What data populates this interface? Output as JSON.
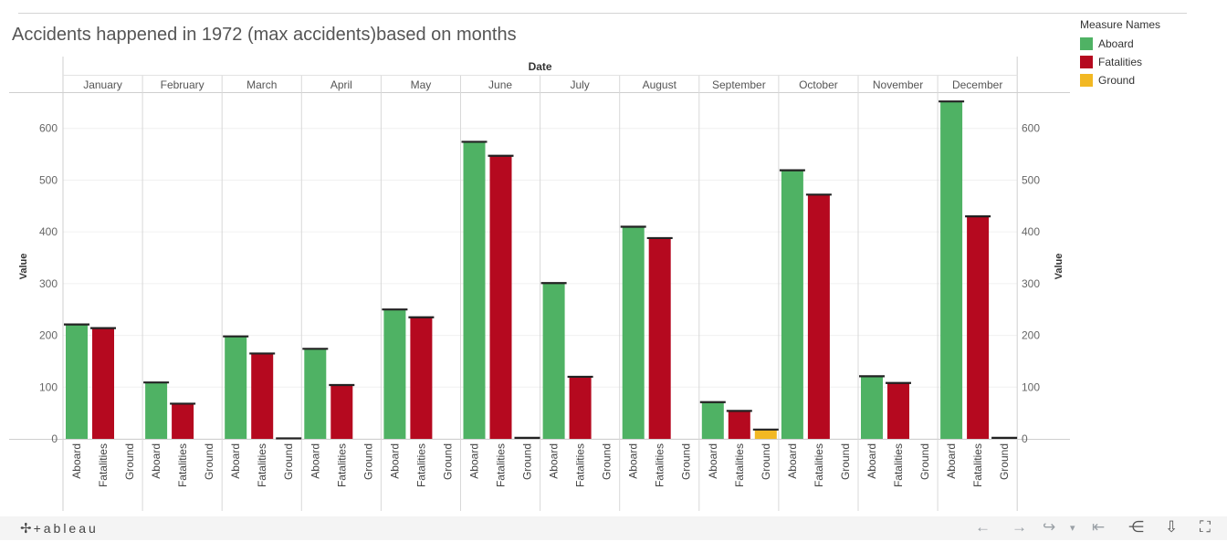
{
  "title": "Accidents happened in 1972 (max accidents)based on months",
  "legend": {
    "title": "Measure Names",
    "items": [
      {
        "label": "Aboard",
        "color": "#4fb264"
      },
      {
        "label": "Fatalities",
        "color": "#b5091f"
      },
      {
        "label": "Ground",
        "color": "#f2b823"
      }
    ]
  },
  "footer": {
    "logo_mark": "✢",
    "logo_text": "+ableau",
    "controls": [
      "←",
      "→",
      "↪",
      "▾",
      "⇤",
      "⋲",
      "⇩",
      "⛶"
    ]
  },
  "chart_data": {
    "type": "bar",
    "column_header": "Date",
    "xlabel": "",
    "ylabel": "Value",
    "ylim": [
      0,
      670
    ],
    "yticks": [
      0,
      100,
      200,
      300,
      400,
      500,
      600
    ],
    "measures": [
      "Aboard",
      "Fatalities",
      "Ground"
    ],
    "colors": [
      "#4fb264",
      "#b5091f",
      "#f2b823"
    ],
    "categories": [
      "January",
      "February",
      "March",
      "April",
      "May",
      "June",
      "July",
      "August",
      "September",
      "October",
      "November",
      "December"
    ],
    "series": [
      {
        "name": "Aboard",
        "values": [
          221,
          109,
          198,
          174,
          250,
          574,
          301,
          410,
          71,
          519,
          121,
          652
        ]
      },
      {
        "name": "Fatalities",
        "values": [
          214,
          68,
          165,
          104,
          235,
          547,
          120,
          388,
          54,
          472,
          108,
          430
        ]
      },
      {
        "name": "Ground",
        "values": [
          0,
          0,
          1,
          0,
          0,
          2,
          0,
          0,
          18,
          0,
          0,
          2
        ]
      }
    ]
  }
}
